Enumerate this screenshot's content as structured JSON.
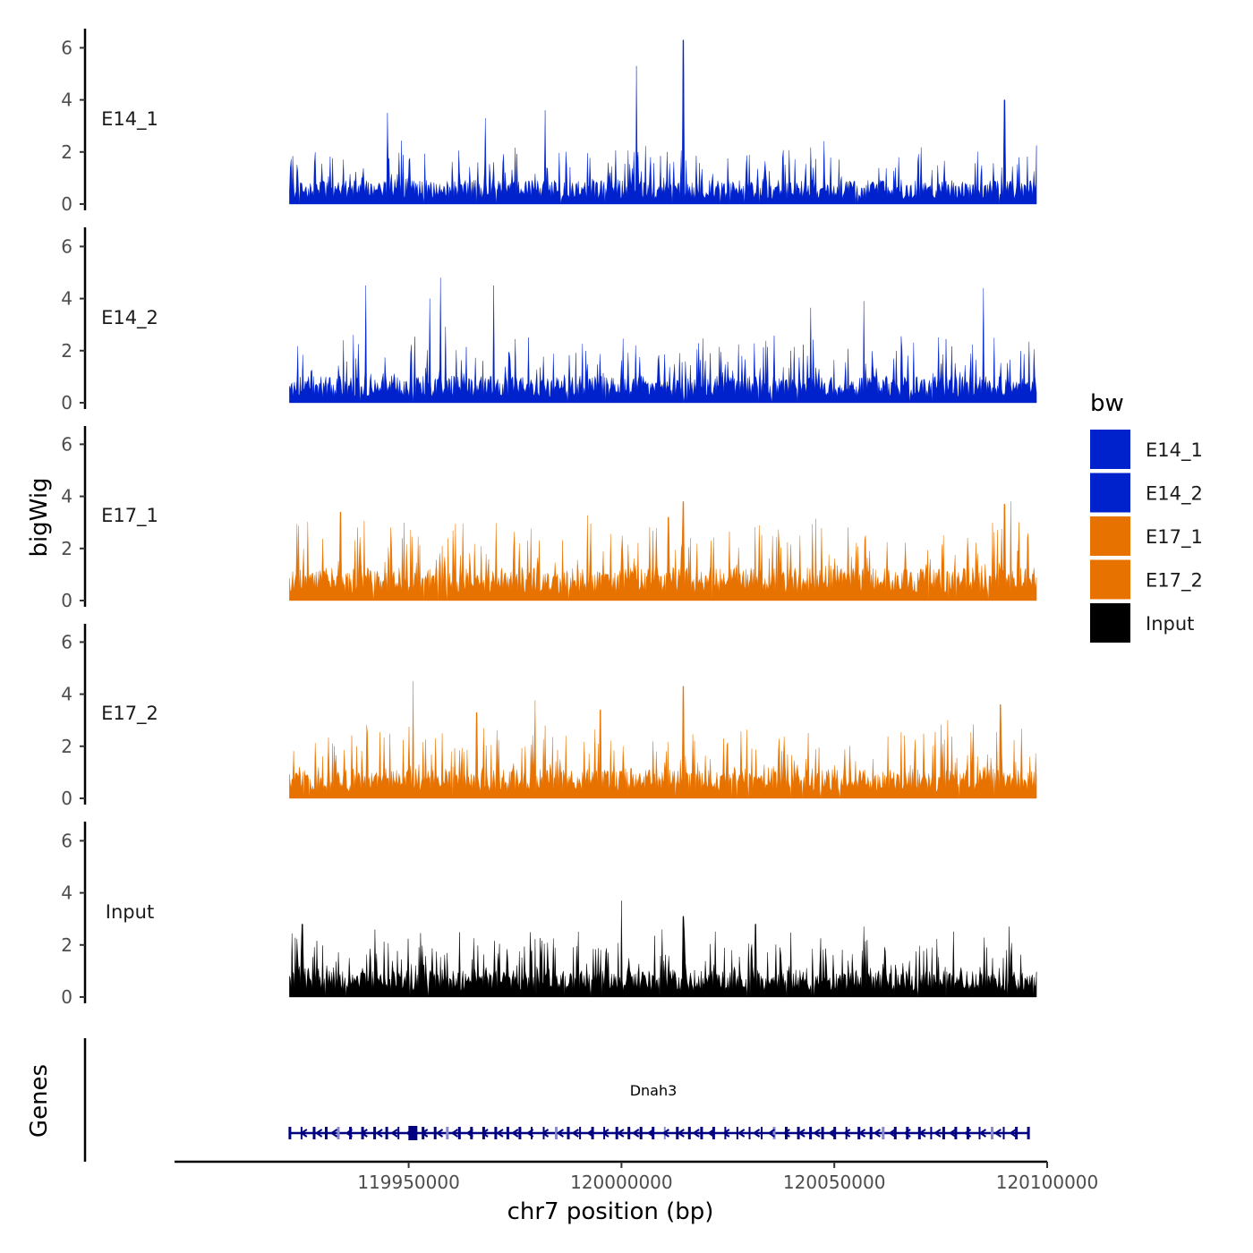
{
  "chart_data": {
    "type": "area",
    "title": "",
    "xlabel": "chr7 position (bp)",
    "ylabel": "bigWig",
    "gene_panel_label": "Genes",
    "xlim": [
      119895000,
      120100000
    ],
    "ylim": [
      0,
      6.5
    ],
    "x_ticks": [
      119950000,
      120000000,
      120050000,
      120100000
    ],
    "x_tick_labels": [
      "119950000",
      "120000000",
      "120050000",
      "120100000"
    ],
    "y_ticks": [
      0,
      2,
      4,
      6
    ],
    "y_tick_labels": [
      "0",
      "2",
      "4",
      "6"
    ],
    "data_range": [
      119922000,
      120097500
    ],
    "legend": {
      "title": "bw",
      "position": "right",
      "entries": [
        {
          "label": "E14_1",
          "color": "#0022CC"
        },
        {
          "label": "E14_2",
          "color": "#0022CC"
        },
        {
          "label": "E17_1",
          "color": "#E87200"
        },
        {
          "label": "E17_2",
          "color": "#E87200"
        },
        {
          "label": "Input",
          "color": "#000000"
        }
      ]
    },
    "series": [
      {
        "name": "E14_1",
        "color": "#0022CC",
        "base_level": 0.8,
        "max_value": 6.3,
        "peaks": [
          {
            "x": 119945000,
            "y": 3.5
          },
          {
            "x": 119968000,
            "y": 3.3
          },
          {
            "x": 119982000,
            "y": 3.6
          },
          {
            "x": 120003500,
            "y": 5.3
          },
          {
            "x": 120014500,
            "y": 6.3
          },
          {
            "x": 120090000,
            "y": 4.0
          }
        ]
      },
      {
        "name": "E14_2",
        "color": "#0022CC",
        "base_level": 0.9,
        "max_value": 4.8,
        "peaks": [
          {
            "x": 119940000,
            "y": 4.5
          },
          {
            "x": 119955000,
            "y": 4.0
          },
          {
            "x": 119957500,
            "y": 4.8
          },
          {
            "x": 119970000,
            "y": 4.5
          },
          {
            "x": 120057000,
            "y": 3.9
          },
          {
            "x": 120085000,
            "y": 4.4
          }
        ]
      },
      {
        "name": "E17_1",
        "color": "#E87200",
        "base_level": 1.1,
        "max_value": 3.8,
        "peaks": [
          {
            "x": 119934000,
            "y": 3.4
          },
          {
            "x": 120011000,
            "y": 3.2
          },
          {
            "x": 120014500,
            "y": 3.8
          },
          {
            "x": 120090000,
            "y": 3.7
          }
        ]
      },
      {
        "name": "E17_2",
        "color": "#E87200",
        "base_level": 1.0,
        "max_value": 4.6,
        "peaks": [
          {
            "x": 119951000,
            "y": 4.5
          },
          {
            "x": 119966000,
            "y": 3.3
          },
          {
            "x": 119995000,
            "y": 3.4
          },
          {
            "x": 120014500,
            "y": 4.3
          },
          {
            "x": 120089000,
            "y": 3.6
          }
        ]
      },
      {
        "name": "Input",
        "color": "#000000",
        "base_level": 0.9,
        "max_value": 3.7,
        "peaks": [
          {
            "x": 119925000,
            "y": 2.8
          },
          {
            "x": 120000000,
            "y": 3.7
          },
          {
            "x": 120014500,
            "y": 3.1
          },
          {
            "x": 120031500,
            "y": 2.8
          },
          {
            "x": 120057000,
            "y": 2.7
          }
        ]
      }
    ],
    "gene": {
      "name": "Dnah3",
      "color": "#000080",
      "strand": "-",
      "start": 119922000,
      "end": 120095500,
      "exon_count": 62
    }
  }
}
